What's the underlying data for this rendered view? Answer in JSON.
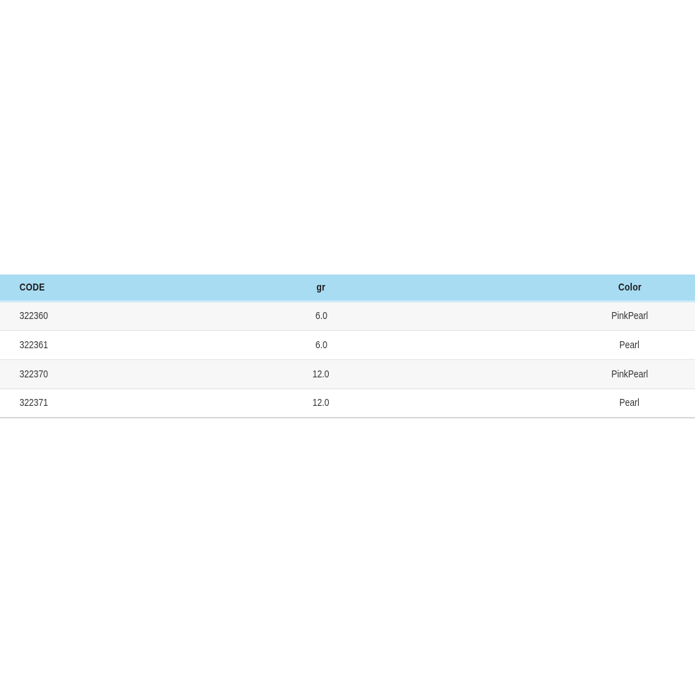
{
  "theme": {
    "page_bg": "#ffffff",
    "header_bg": "#a8dcf2",
    "header_border_bottom": "#c8e9f8",
    "header_text": "#1b1b1b",
    "row_odd_bg": "#f7f7f7",
    "row_even_bg": "#ffffff",
    "separator": "#e2e2e2",
    "bottom_border": "#d6d6d6",
    "cell_text": "#333333"
  },
  "table": {
    "columns": [
      {
        "label": "CODE"
      },
      {
        "label": "gr"
      },
      {
        "label": "Color"
      }
    ],
    "rows": [
      {
        "code": "322360",
        "gr": "6.0",
        "color": "PinkPearl"
      },
      {
        "code": "322361",
        "gr": "6.0",
        "color": "Pearl"
      },
      {
        "code": "322370",
        "gr": "12.0",
        "color": "PinkPearl"
      },
      {
        "code": "322371",
        "gr": "12.0",
        "color": "Pearl"
      }
    ]
  }
}
